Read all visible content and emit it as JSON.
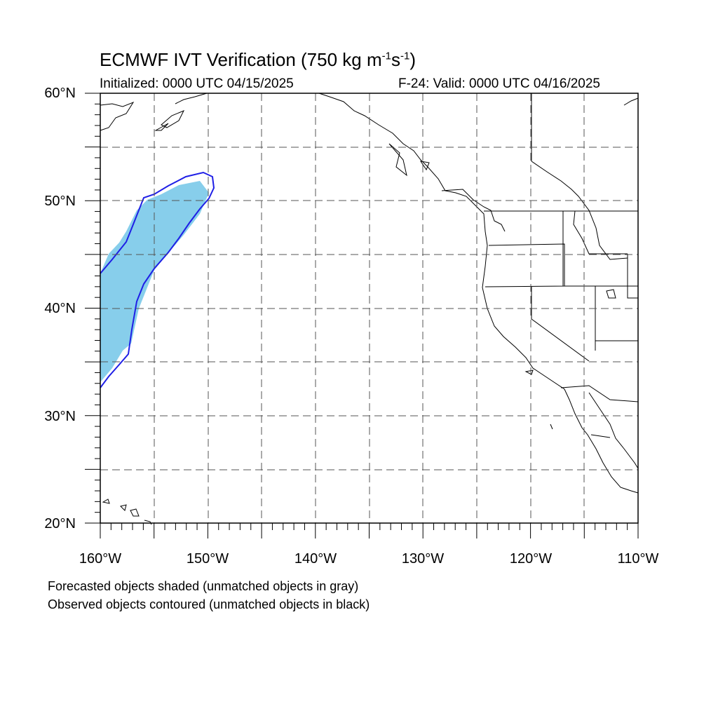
{
  "title": {
    "main": "ECMWF IVT Verification (750 kg m",
    "exp1": "-1",
    "mid": "s",
    "exp2": "-1",
    "close": ")"
  },
  "subtitle_left": "Initialized: 0000 UTC 04/15/2025",
  "subtitle_right": "F-24: Valid: 0000 UTC 04/16/2025",
  "lat_labels": [
    "60°N",
    "50°N",
    "40°N",
    "30°N",
    "20°N"
  ],
  "lon_labels": [
    "160°W",
    "150°W",
    "140°W",
    "130°W",
    "120°W",
    "110°W"
  ],
  "notes": [
    "Forecasted objects shaded (unmatched objects in gray)",
    "Observed objects contoured (unmatched objects in black)"
  ],
  "colors": {
    "forecast_shade": "#87ceeb",
    "observed_contour": "#1f1fe6",
    "coastline": "#000000",
    "grid": "#555555"
  },
  "map_extent": {
    "lon_min": -160,
    "lon_max": -110,
    "lat_min": 20,
    "lat_max": 60
  }
}
